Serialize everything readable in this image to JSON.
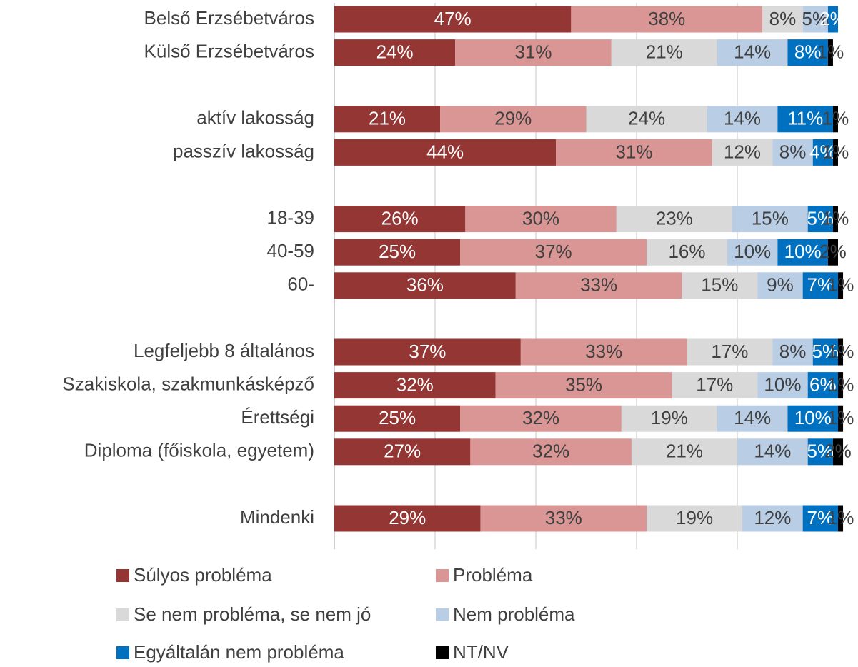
{
  "chart_data": {
    "type": "stacked-bar-horizontal",
    "categories": [
      "Belső Erzsébetváros",
      "Külső Erzsébetváros",
      null,
      "aktív lakosság",
      "passzív lakosság",
      null,
      "18-39",
      "40-59",
      "60-",
      null,
      "Legfeljebb 8 általános",
      "Szakiskola, szakmunkásképző",
      "Érettségi",
      "Diploma (főiskola, egyetem)",
      null,
      "Mindenki"
    ],
    "series": [
      {
        "name": "Súlyos probléma",
        "color": "#943634",
        "label_color": "#ffffff",
        "values": [
          47,
          24,
          null,
          21,
          44,
          null,
          26,
          25,
          36,
          null,
          37,
          32,
          25,
          27,
          null,
          29
        ],
        "value_labels": [
          "47%",
          "24%",
          null,
          "21%",
          "44%",
          null,
          "26%",
          "25%",
          "36%",
          null,
          "37%",
          "32%",
          "25%",
          "27%",
          null,
          "29%"
        ]
      },
      {
        "name": "Probléma",
        "color": "#d99694",
        "label_color": "#404040",
        "values": [
          38,
          31,
          null,
          29,
          31,
          null,
          30,
          37,
          33,
          null,
          33,
          35,
          32,
          32,
          null,
          33
        ],
        "value_labels": [
          "38%",
          "31%",
          null,
          "29%",
          "31%",
          null,
          "30%",
          "37%",
          "33%",
          null,
          "33%",
          "35%",
          "32%",
          "32%",
          null,
          "33%"
        ]
      },
      {
        "name": "Se nem probléma, se nem jó",
        "color": "#d9d9d9",
        "label_color": "#404040",
        "values": [
          8,
          21,
          null,
          24,
          12,
          null,
          23,
          16,
          15,
          null,
          17,
          17,
          19,
          21,
          null,
          19
        ],
        "value_labels": [
          "8%",
          "21%",
          null,
          "24%",
          "12%",
          null,
          "23%",
          "16%",
          "15%",
          null,
          "17%",
          "17%",
          "19%",
          "21%",
          null,
          "19%"
        ]
      },
      {
        "name": "Nem probléma",
        "color": "#b9cde5",
        "label_color": "#404040",
        "values": [
          5,
          14,
          null,
          14,
          8,
          null,
          15,
          10,
          9,
          null,
          8,
          10,
          14,
          14,
          null,
          12
        ],
        "value_labels": [
          "5%",
          "14%",
          null,
          "14%",
          "8%",
          null,
          "15%",
          "10%",
          "9%",
          null,
          "8%",
          "10%",
          "14%",
          "14%",
          null,
          "12%"
        ]
      },
      {
        "name": "Egyáltalán nem probléma",
        "color": "#0070c0",
        "label_color": "#ffffff",
        "values": [
          2,
          8,
          null,
          11,
          4,
          null,
          5,
          10,
          7,
          null,
          5,
          6,
          10,
          5,
          null,
          7
        ],
        "value_labels": [
          "2%",
          "8%",
          null,
          "11%",
          "4%",
          null,
          "5%",
          "10%",
          "7%",
          null,
          "5%",
          "6%",
          "10%",
          "5%",
          null,
          "7%"
        ]
      },
      {
        "name": "NT/NV",
        "color": "#000000",
        "label_color": "#404040",
        "values": [
          null,
          1,
          null,
          1,
          1,
          null,
          1,
          2,
          1,
          null,
          1,
          1,
          1,
          2,
          null,
          1
        ],
        "value_labels": [
          null,
          "1%",
          null,
          "1%",
          "1%",
          null,
          "1%",
          "2%",
          "1%",
          null,
          "1%",
          "1%",
          "1%",
          "2%",
          null,
          "1%"
        ]
      }
    ],
    "xlim": [
      0,
      100
    ],
    "xticks": [
      0,
      20,
      40,
      60,
      80,
      100
    ],
    "grid": true
  }
}
